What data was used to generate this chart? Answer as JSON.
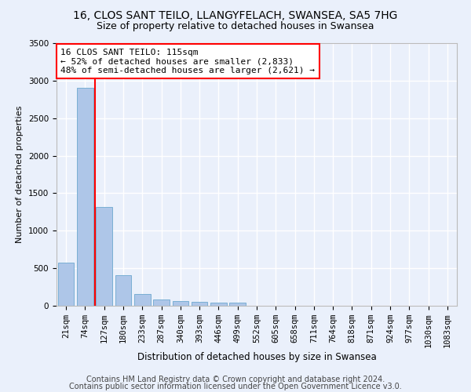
{
  "title1": "16, CLOS SANT TEILO, LLANGYFELACH, SWANSEA, SA5 7HG",
  "title2": "Size of property relative to detached houses in Swansea",
  "xlabel": "Distribution of detached houses by size in Swansea",
  "ylabel": "Number of detached properties",
  "bin_labels": [
    "21sqm",
    "74sqm",
    "127sqm",
    "180sqm",
    "233sqm",
    "287sqm",
    "340sqm",
    "393sqm",
    "446sqm",
    "499sqm",
    "552sqm",
    "605sqm",
    "658sqm",
    "711sqm",
    "764sqm",
    "818sqm",
    "871sqm",
    "924sqm",
    "977sqm",
    "1030sqm",
    "1083sqm"
  ],
  "bar_values": [
    570,
    2900,
    1320,
    410,
    155,
    85,
    60,
    55,
    45,
    40,
    0,
    0,
    0,
    0,
    0,
    0,
    0,
    0,
    0,
    0,
    0
  ],
  "bar_color": "#aec6e8",
  "bar_edge_color": "#7aafd4",
  "vline_color": "red",
  "vline_x": 1.5,
  "annotation_text": "16 CLOS SANT TEILO: 115sqm\n← 52% of detached houses are smaller (2,833)\n48% of semi-detached houses are larger (2,621) →",
  "annotation_box_color": "white",
  "annotation_box_edge": "red",
  "ylim": [
    0,
    3500
  ],
  "yticks": [
    0,
    500,
    1000,
    1500,
    2000,
    2500,
    3000,
    3500
  ],
  "footer1": "Contains HM Land Registry data © Crown copyright and database right 2024.",
  "footer2": "Contains public sector information licensed under the Open Government Licence v3.0.",
  "bg_color": "#eaf0fb",
  "grid_color": "#ffffff",
  "title1_fontsize": 10,
  "title2_fontsize": 9,
  "annotation_fontsize": 8,
  "xlabel_fontsize": 8.5,
  "ylabel_fontsize": 8,
  "tick_fontsize": 7.5,
  "footer_fontsize": 7
}
